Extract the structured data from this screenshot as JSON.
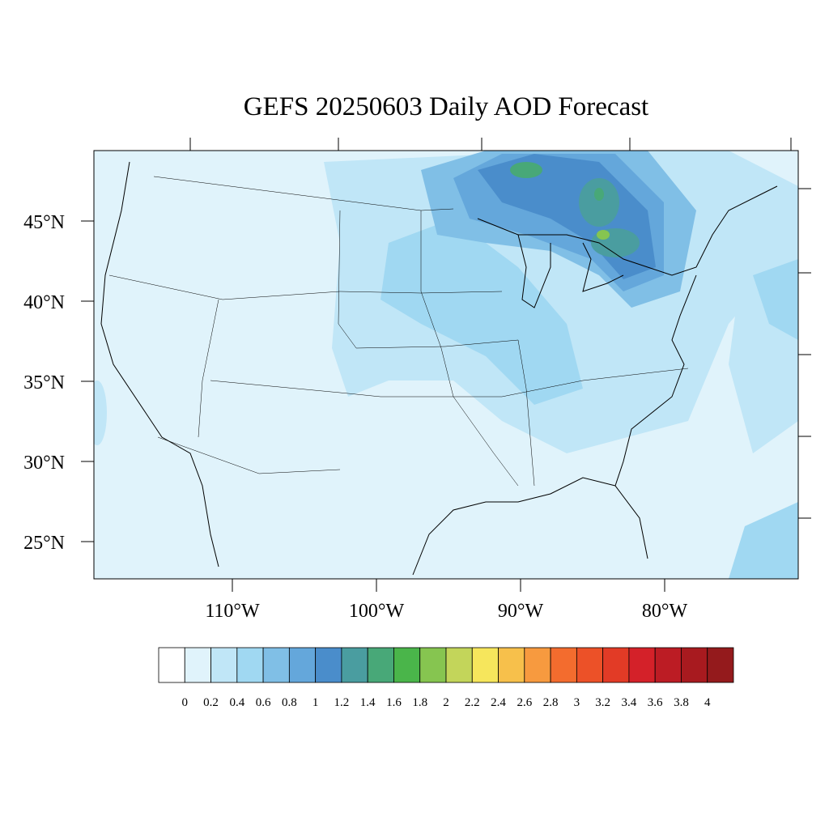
{
  "map": {
    "title": "GEFS 20250603 Daily AOD Forecast",
    "lat_labels": [
      "45°N",
      "40°N",
      "35°N",
      "30°N",
      "25°N"
    ],
    "lon_labels": [
      "110°W",
      "100°W",
      "90°W",
      "80°W"
    ],
    "colorbar": {
      "levels": [
        0,
        0.2,
        0.4,
        0.6,
        0.8,
        1,
        1.2,
        1.4,
        1.6,
        1.8,
        2,
        2.2,
        2.4,
        2.6,
        2.8,
        3,
        3.2,
        3.4,
        3.6,
        3.8,
        4
      ],
      "colors": [
        "#ffffff",
        "#e0f3fb",
        "#c0e6f7",
        "#a0d8f2",
        "#80bfe6",
        "#64a7db",
        "#4a8dcb",
        "#4a9da0",
        "#48a878",
        "#4ab54a",
        "#86c550",
        "#c3d55a",
        "#f6e65c",
        "#f7c04b",
        "#f79a3f",
        "#f36c2e",
        "#ec5128",
        "#e23b26",
        "#d42129",
        "#bc1c24",
        "#a81a1f",
        "#941a1c"
      ]
    }
  }
}
